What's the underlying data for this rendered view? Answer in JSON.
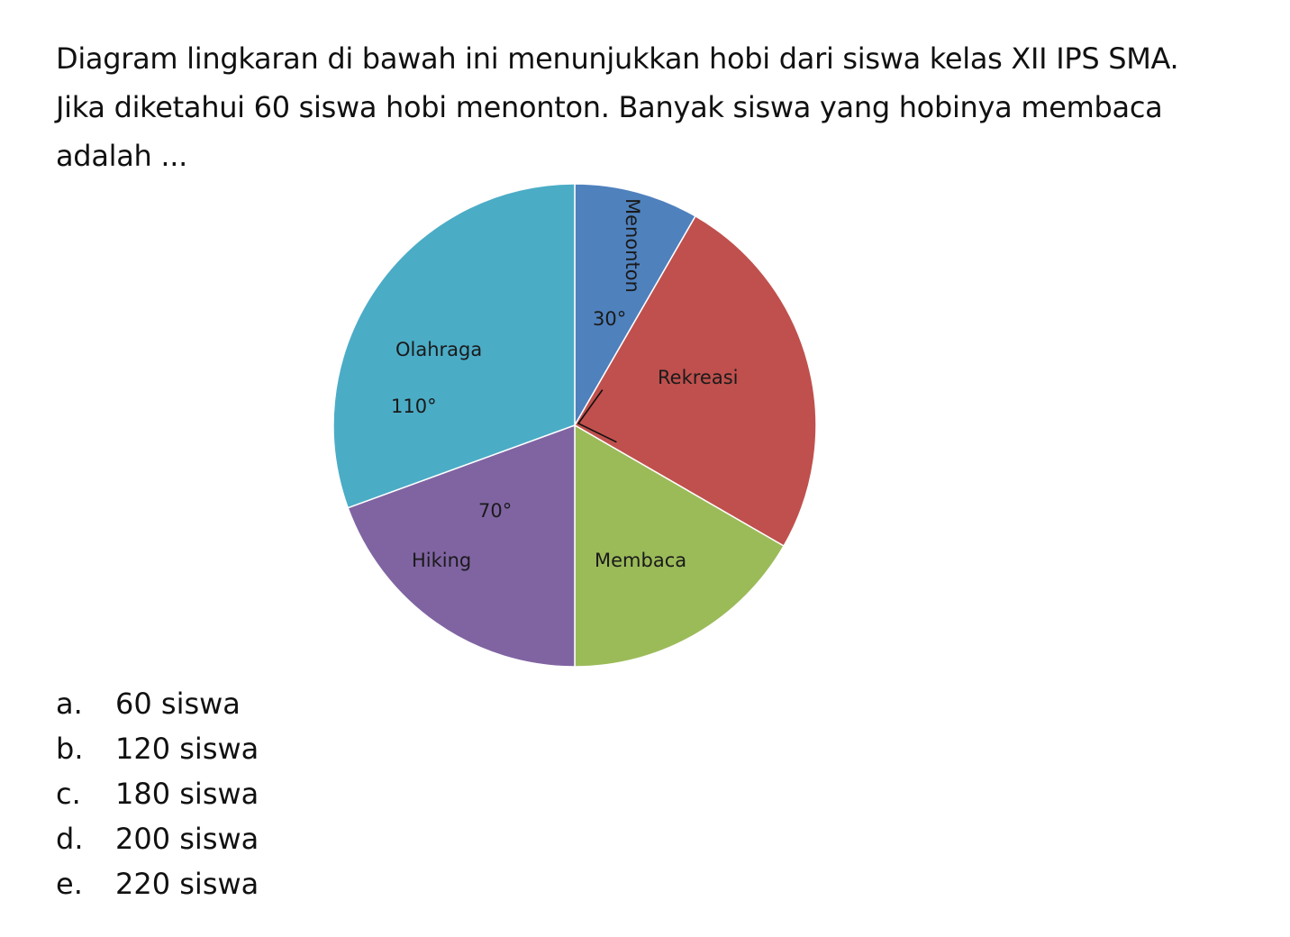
{
  "question": {
    "line1": "Diagram lingkaran di bawah ini menunjukkan hobi dari siswa kelas XII IPS SMA.",
    "line2": "Jika diketahui 60 siswa hobi menonton. Banyak siswa yang hobinya membaca",
    "line3": "adalah ..."
  },
  "chart_data": {
    "type": "pie",
    "title": "",
    "start_angle_deg": 0,
    "direction": "clockwise",
    "slices": [
      {
        "name": "Menonton",
        "angle_label": "30°",
        "degrees": 30,
        "color": "#4f81bd"
      },
      {
        "name": "Rekreasi",
        "angle_label": "",
        "degrees": 90,
        "color": "#c0504d"
      },
      {
        "name": "Membaca",
        "angle_label": "",
        "degrees": 60,
        "color": "#9bbb59"
      },
      {
        "name": "Hiking",
        "angle_label": "70°",
        "degrees": 70,
        "color": "#8064a2"
      },
      {
        "name": "Olahraga",
        "angle_label": "110°",
        "degrees": 110,
        "color": "#4bacc6"
      }
    ],
    "right_angle_marker_slice": "Rekreasi"
  },
  "options": [
    {
      "letter": "a.",
      "text": "60 siswa"
    },
    {
      "letter": "b.",
      "text": "120 siswa"
    },
    {
      "letter": "c.",
      "text": "180 siswa"
    },
    {
      "letter": "d.",
      "text": "200 siswa"
    },
    {
      "letter": "e.",
      "text": "220 siswa"
    }
  ]
}
